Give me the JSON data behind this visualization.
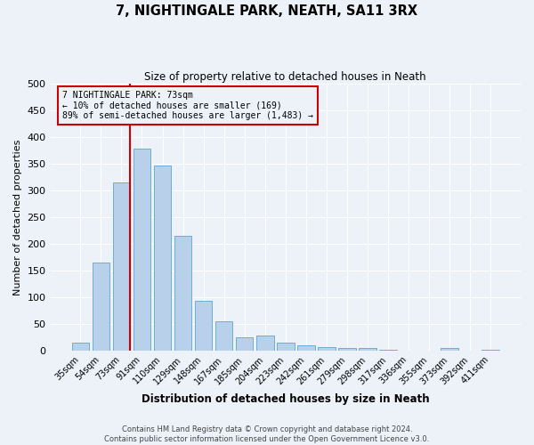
{
  "title": "7, NIGHTINGALE PARK, NEATH, SA11 3RX",
  "subtitle": "Size of property relative to detached houses in Neath",
  "xlabel": "Distribution of detached houses by size in Neath",
  "ylabel": "Number of detached properties",
  "bar_labels": [
    "35sqm",
    "54sqm",
    "73sqm",
    "91sqm",
    "110sqm",
    "129sqm",
    "148sqm",
    "167sqm",
    "185sqm",
    "204sqm",
    "223sqm",
    "242sqm",
    "261sqm",
    "279sqm",
    "298sqm",
    "317sqm",
    "336sqm",
    "355sqm",
    "373sqm",
    "392sqm",
    "411sqm"
  ],
  "bar_values": [
    15,
    165,
    315,
    378,
    347,
    215,
    93,
    55,
    25,
    29,
    14,
    10,
    7,
    5,
    5,
    1,
    0,
    0,
    5,
    0,
    2
  ],
  "bar_color": "#b8d0ea",
  "bar_edge_color": "#6aaed6",
  "property_bin_index": 2,
  "vline_color": "#cc0000",
  "annotation_text": "7 NIGHTINGALE PARK: 73sqm\n← 10% of detached houses are smaller (169)\n89% of semi-detached houses are larger (1,483) →",
  "annotation_box_color": "#cc0000",
  "ylim": [
    0,
    500
  ],
  "yticks": [
    0,
    50,
    100,
    150,
    200,
    250,
    300,
    350,
    400,
    450,
    500
  ],
  "bg_color": "#edf2f9",
  "grid_color": "#ffffff",
  "footer_line1": "Contains HM Land Registry data © Crown copyright and database right 2024.",
  "footer_line2": "Contains public sector information licensed under the Open Government Licence v3.0."
}
